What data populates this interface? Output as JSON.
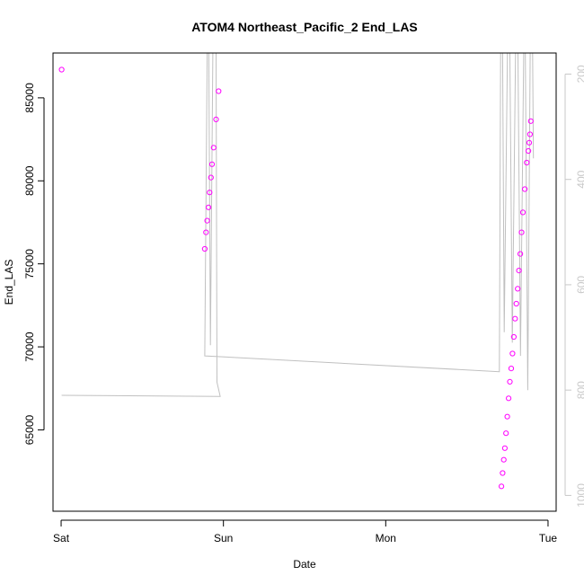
{
  "chart_data": {
    "type": "scatter",
    "title": "ATOM4 Northeast_Pacific_2 End_LAS",
    "xlabel": "Date",
    "ylabel": "End_LAS",
    "x_ticks": [
      "Sat",
      "Sun",
      "Mon",
      "Tue"
    ],
    "x_range_days": [
      -0.05,
      3.05
    ],
    "y_ticks": [
      "65000",
      "70000",
      "75000",
      "80000",
      "85000"
    ],
    "ylim": [
      60100,
      87700
    ],
    "y2_ticks": [
      "200",
      "400",
      "600",
      "800",
      "1000"
    ],
    "y2lim": [
      1030,
      160
    ],
    "grid": false,
    "colors": {
      "points": "#ff00ff",
      "line": "#c0c0c0",
      "right_axis": "#c8c8c8",
      "axes": "#000000"
    },
    "series": [
      {
        "marker": "circle",
        "points": [
          {
            "x": 0.003,
            "y": 86700
          },
          {
            "x": 0.885,
            "y": 75900
          },
          {
            "x": 0.893,
            "y": 76900
          },
          {
            "x": 0.9,
            "y": 77600
          },
          {
            "x": 0.908,
            "y": 78400
          },
          {
            "x": 0.915,
            "y": 79300
          },
          {
            "x": 0.923,
            "y": 80200
          },
          {
            "x": 0.93,
            "y": 81000
          },
          {
            "x": 0.94,
            "y": 82000
          },
          {
            "x": 0.955,
            "y": 83700
          },
          {
            "x": 0.97,
            "y": 85400
          },
          {
            "x": 2.713,
            "y": 61600
          },
          {
            "x": 2.72,
            "y": 62400
          },
          {
            "x": 2.727,
            "y": 63200
          },
          {
            "x": 2.734,
            "y": 63900
          },
          {
            "x": 2.741,
            "y": 64800
          },
          {
            "x": 2.749,
            "y": 65800
          },
          {
            "x": 2.757,
            "y": 66900
          },
          {
            "x": 2.765,
            "y": 67900
          },
          {
            "x": 2.773,
            "y": 68700
          },
          {
            "x": 2.781,
            "y": 69600
          },
          {
            "x": 2.789,
            "y": 70600
          },
          {
            "x": 2.797,
            "y": 71700
          },
          {
            "x": 2.805,
            "y": 72600
          },
          {
            "x": 2.813,
            "y": 73500
          },
          {
            "x": 2.821,
            "y": 74600
          },
          {
            "x": 2.829,
            "y": 75600
          },
          {
            "x": 2.837,
            "y": 76900
          },
          {
            "x": 2.845,
            "y": 78100
          },
          {
            "x": 2.857,
            "y": 79500
          },
          {
            "x": 2.869,
            "y": 81100
          },
          {
            "x": 2.879,
            "y": 81800
          },
          {
            "x": 2.884,
            "y": 82300
          },
          {
            "x": 2.889,
            "y": 82800
          },
          {
            "x": 2.894,
            "y": 83600
          }
        ]
      },
      {
        "marker": "line",
        "axis": "right",
        "points": [
          {
            "x": 0.003,
            "y": 810
          },
          {
            "x": 0.98,
            "y": 812
          },
          {
            "x": 0.96,
            "y": 785
          },
          {
            "x": 0.955,
            "y": 160
          },
          {
            "x": 0.935,
            "y": 160
          },
          {
            "x": 0.92,
            "y": 715
          },
          {
            "x": 0.91,
            "y": 160
          },
          {
            "x": 0.9,
            "y": 160
          },
          {
            "x": 0.885,
            "y": 735
          },
          {
            "x": 2.7,
            "y": 765
          },
          {
            "x": 2.708,
            "y": 160
          },
          {
            "x": 2.72,
            "y": 160
          },
          {
            "x": 2.73,
            "y": 690
          },
          {
            "x": 2.75,
            "y": 160
          },
          {
            "x": 2.765,
            "y": 160
          },
          {
            "x": 2.78,
            "y": 710
          },
          {
            "x": 2.8,
            "y": 160
          },
          {
            "x": 2.815,
            "y": 160
          },
          {
            "x": 2.83,
            "y": 735
          },
          {
            "x": 2.85,
            "y": 160
          },
          {
            "x": 2.86,
            "y": 160
          },
          {
            "x": 2.875,
            "y": 800
          },
          {
            "x": 2.89,
            "y": 160
          },
          {
            "x": 2.905,
            "y": 160
          },
          {
            "x": 2.91,
            "y": 360
          }
        ]
      }
    ]
  }
}
